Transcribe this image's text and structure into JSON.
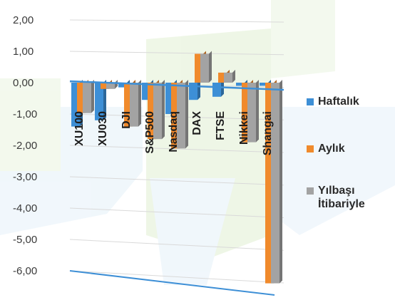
{
  "chart_data": {
    "type": "bar",
    "title": "",
    "xlabel": "",
    "ylabel": "",
    "categories": [
      "XU100",
      "XU030",
      "DJI",
      "S&P500",
      "Nasdaq",
      "DAX",
      "FTSE",
      "Nikkei",
      "Shangai"
    ],
    "series": [
      {
        "name": "Haftalık",
        "color": "#3d8fd6",
        "values": [
          -1.4,
          -1.2,
          -0.15,
          -0.55,
          -1.0,
          -0.55,
          -0.45,
          -0.1,
          -0.1
        ]
      },
      {
        "name": "Aylık",
        "color": "#f08a2c",
        "values": [
          -0.97,
          -0.2,
          -1.4,
          -1.8,
          -2.1,
          0.92,
          0.32,
          -1.9,
          -6.4
        ]
      },
      {
        "name": "Yılbaşı İtibariyle",
        "color": "#a3a3a3",
        "values": [
          -0.97,
          -0.2,
          -1.4,
          -1.8,
          -2.1,
          0.92,
          0.32,
          -1.9,
          -6.4
        ]
      }
    ],
    "yticks": [
      "2,00",
      "1,00",
      "0,00",
      "-1,00",
      "-2,00",
      "-3,00",
      "-4,00",
      "-5,00",
      "-6,00"
    ],
    "ylim": [
      -6,
      2
    ],
    "grid": true,
    "legend_position": "right"
  }
}
